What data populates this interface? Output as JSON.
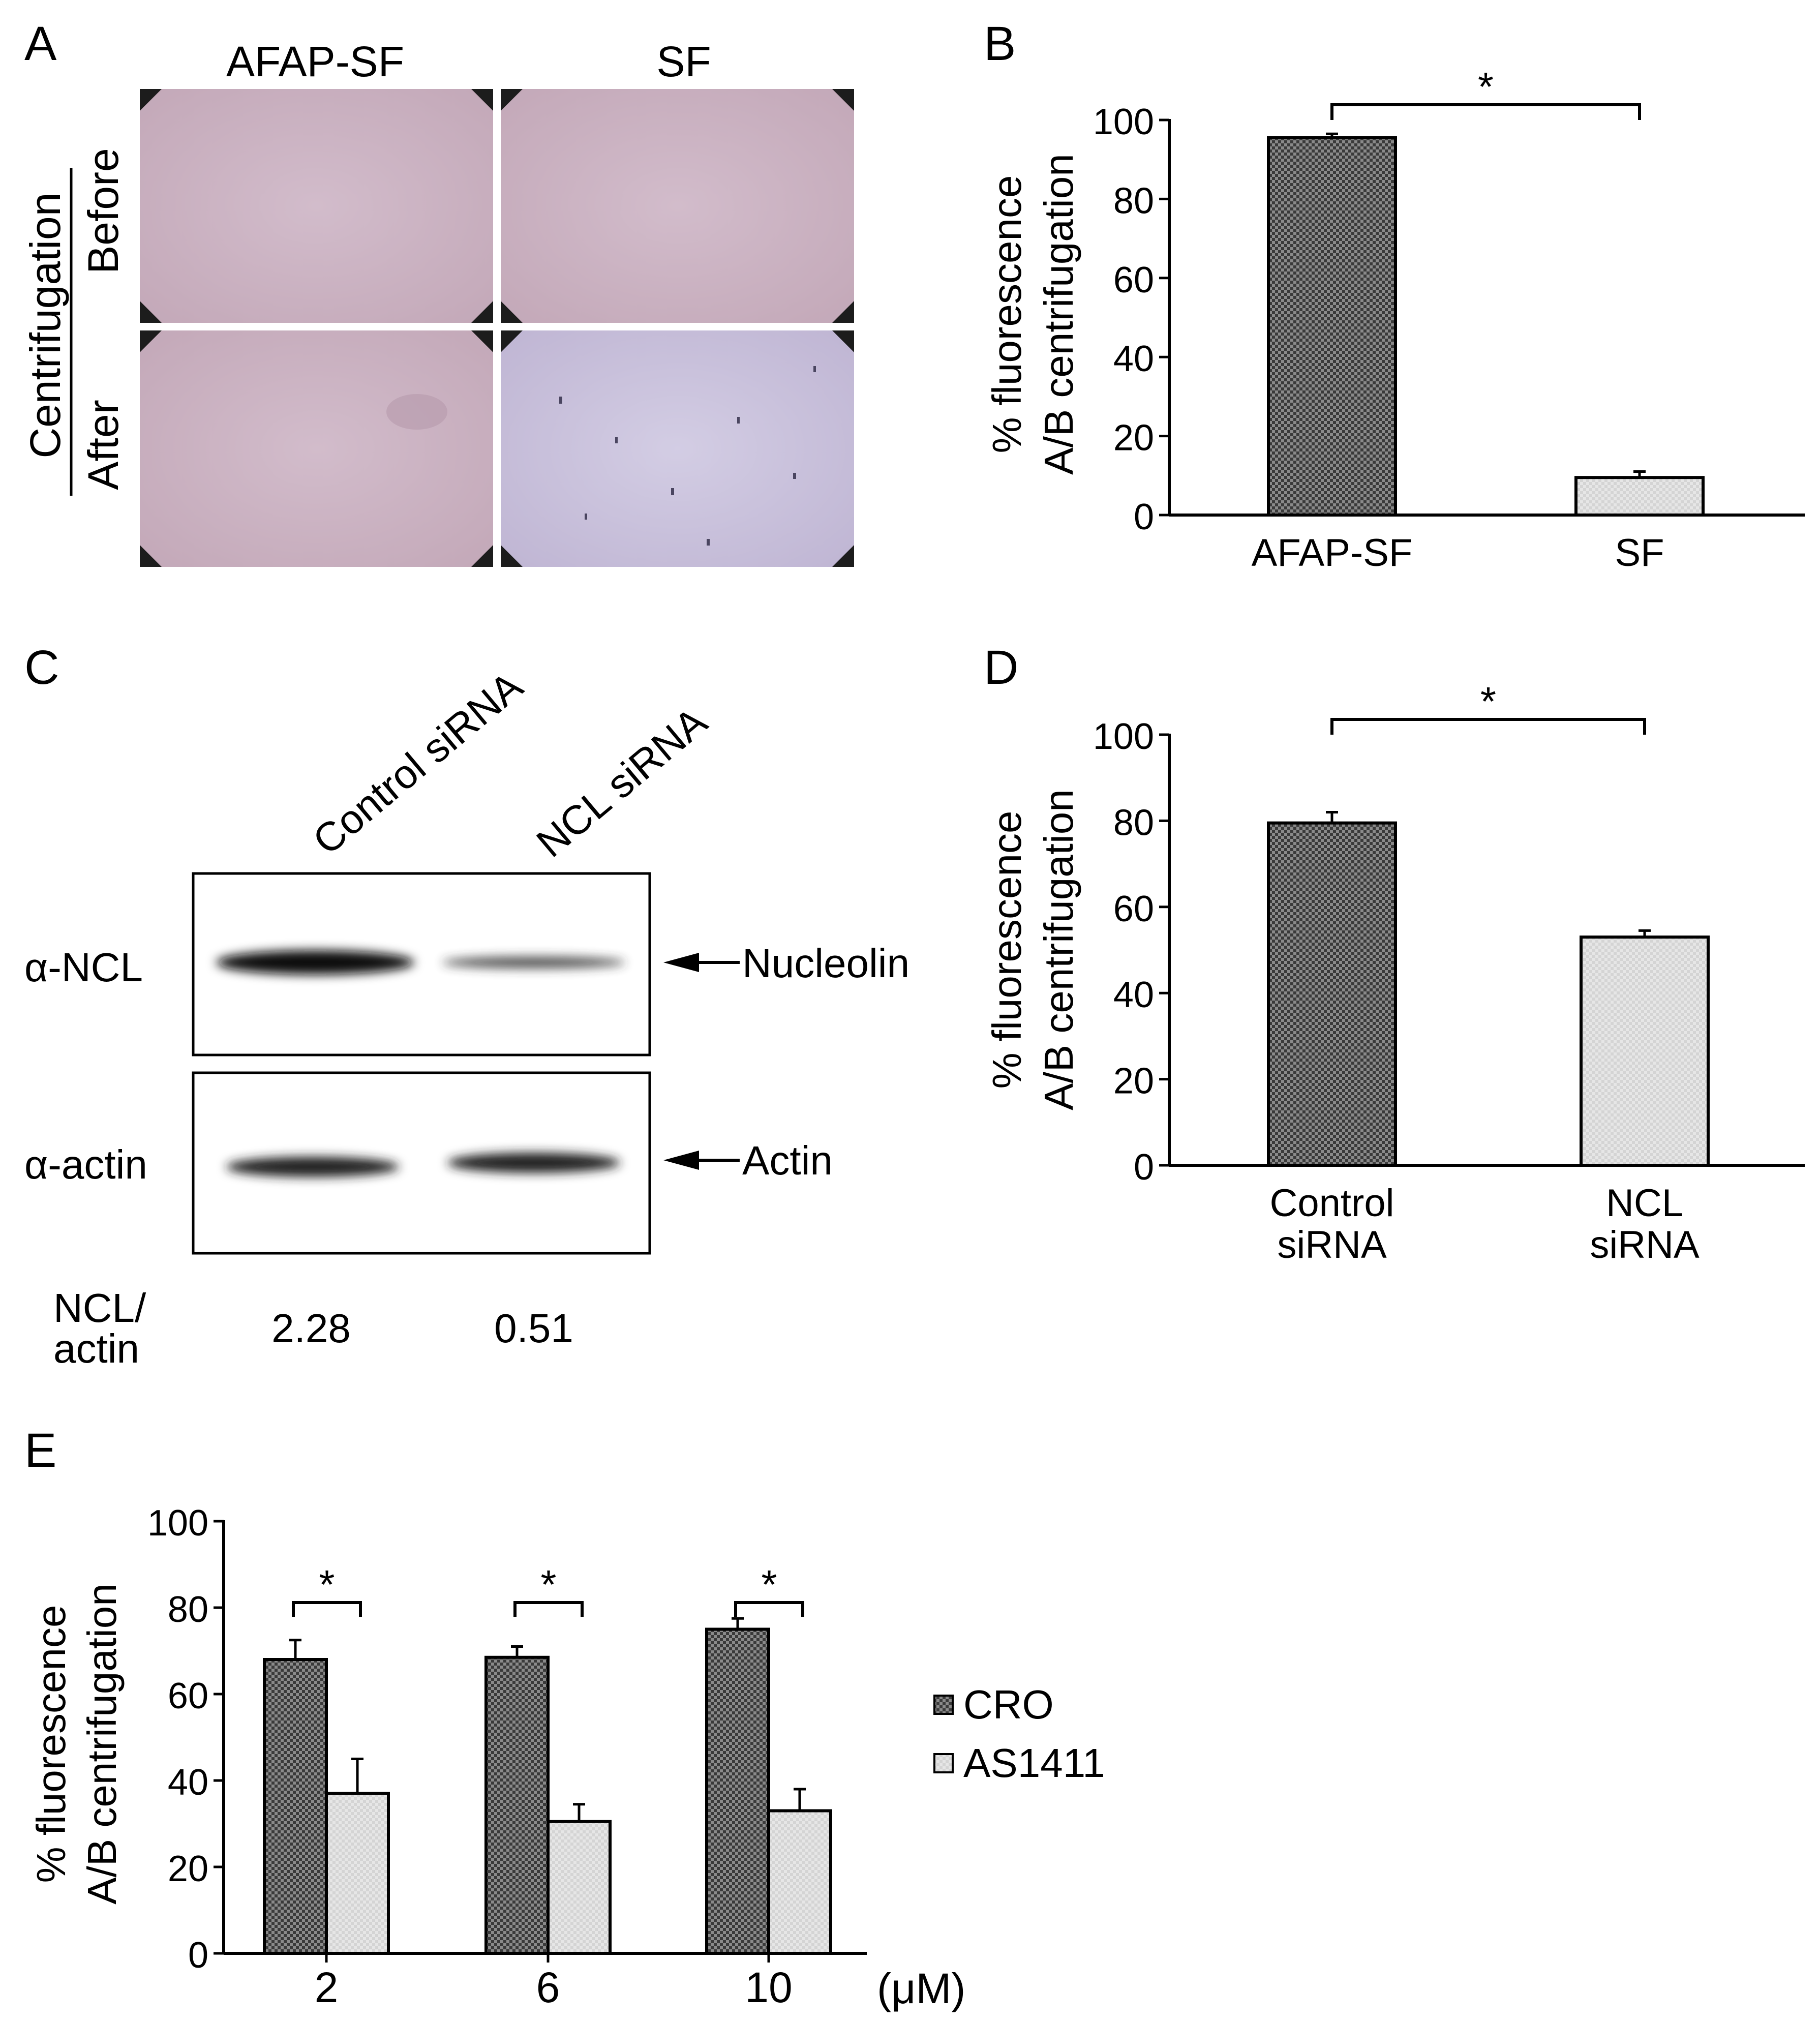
{
  "colors": {
    "cro_fill": "#3a3a3a",
    "as1411_fill": "#d4d4d4",
    "micrograph_before": "#cdb5c2",
    "micrograph_after_sf": "#c9c2dc",
    "blot_band": "#0a0a0a",
    "axis": "#000000"
  },
  "panel_a": {
    "letter": "A",
    "columns": [
      "AFAP-SF",
      "SF"
    ],
    "group_label": "Centrifugation",
    "rows": [
      "Before",
      "After"
    ]
  },
  "panel_c": {
    "letter": "C",
    "lanes": [
      "Control siRNA",
      "NCL siRNA"
    ],
    "blots": [
      {
        "antibody": "α-NCL",
        "target": "Nucleolin",
        "band_intensity": [
          1.0,
          0.35
        ]
      },
      {
        "antibody": "α-actin",
        "target": "Actin",
        "band_intensity": [
          0.85,
          0.85
        ]
      }
    ],
    "ratio_label_line1": "NCL/",
    "ratio_label_line2": "actin",
    "ratio_values": [
      "2.28",
      "0.51"
    ]
  },
  "chart_data": [
    {
      "panel": "B",
      "type": "bar",
      "categories": [
        "AFAP-SF",
        "SF"
      ],
      "values": [
        95.5,
        9.5
      ],
      "errors": [
        1,
        1.5
      ],
      "ylabel_line1": "% fluorescence",
      "ylabel_line2": "A/B centrifugation",
      "ylim": [
        0,
        100
      ],
      "yticks": [
        0,
        20,
        40,
        60,
        80,
        100
      ],
      "significance": [
        {
          "between": [
            0,
            1
          ],
          "label": "*"
        }
      ]
    },
    {
      "panel": "D",
      "type": "bar",
      "categories": [
        [
          "Control",
          "siRNA"
        ],
        [
          "NCL",
          "siRNA"
        ]
      ],
      "values": [
        79.5,
        53
      ],
      "errors": [
        2.5,
        1.5
      ],
      "ylabel_line1": "% fluorescence",
      "ylabel_line2": "A/B centrifugation",
      "ylim": [
        0,
        100
      ],
      "yticks": [
        0,
        20,
        40,
        60,
        80,
        100
      ],
      "significance": [
        {
          "between": [
            0,
            1
          ],
          "label": "*"
        }
      ]
    },
    {
      "panel": "E",
      "type": "bar",
      "categories": [
        "2",
        "6",
        "10"
      ],
      "x_unit": "(μM)",
      "series": [
        {
          "name": "CRO",
          "values": [
            68,
            68.5,
            75
          ],
          "errors": [
            4.5,
            2.5,
            2.5
          ]
        },
        {
          "name": "AS1411",
          "values": [
            37,
            30.5,
            33
          ],
          "errors": [
            8,
            4,
            5
          ]
        }
      ],
      "ylabel_line1": "% fluorescence",
      "ylabel_line2": "A/B centrifugation",
      "ylim": [
        0,
        100
      ],
      "yticks": [
        0,
        20,
        40,
        60,
        80,
        100
      ],
      "legend_position": "right",
      "significance": [
        {
          "group": 0,
          "label": "*"
        },
        {
          "group": 1,
          "label": "*"
        },
        {
          "group": 2,
          "label": "*"
        }
      ]
    }
  ]
}
